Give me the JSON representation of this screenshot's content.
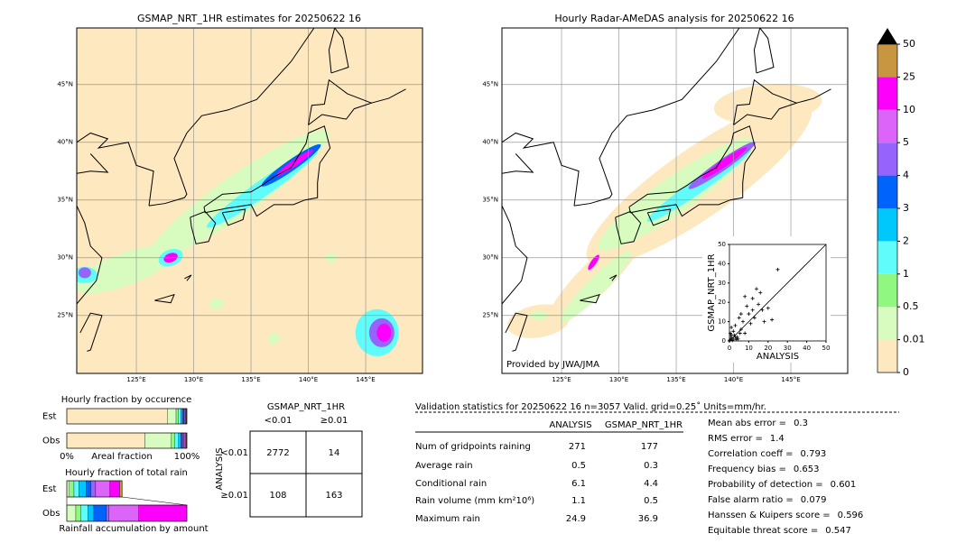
{
  "maps": [
    {
      "title": "GSMAP_NRT_1HR estimates for 20250622 16",
      "lat_labels": [
        "45°N",
        "40°N",
        "35°N",
        "30°N",
        "25°N"
      ],
      "lon_labels": [
        "125°E",
        "130°E",
        "135°E",
        "140°E",
        "145°E"
      ]
    },
    {
      "title": "Hourly Radar-AMeDAS analysis for 20250622 16",
      "lat_labels": [
        "45°N",
        "40°N",
        "35°N",
        "30°N",
        "25°N"
      ],
      "lon_labels": [
        "125°E",
        "130°E",
        "135°E",
        "140°E",
        "145°E"
      ],
      "credit": "Provided by JWA/JMA"
    }
  ],
  "colorbar": {
    "ticks": [
      0,
      0.01,
      0.5,
      1,
      2,
      3,
      4,
      5,
      10,
      25,
      50
    ],
    "colors": [
      "#fde8c0",
      "#d8fcc0",
      "#90f880",
      "#60fcfc",
      "#00c8fc",
      "#0064fc",
      "#9664fc",
      "#dc64f8",
      "#fc00fc",
      "#c89640"
    ],
    "extend_color": "#000000"
  },
  "chart_data": [
    {
      "type": "scatter",
      "xlabel": "ANALYSIS",
      "ylabel": "GSMAP_NRT_1HR",
      "color": "#000000",
      "x": [
        25,
        14,
        12,
        8,
        15,
        17,
        20,
        10,
        5,
        3,
        2,
        1,
        6,
        4,
        8,
        11,
        13,
        7,
        18,
        22,
        1,
        2,
        3,
        0.5,
        1,
        9,
        16,
        12,
        6,
        0.3,
        0.8,
        1.5,
        2.5,
        4.5,
        5.5,
        3.5
      ],
      "y": [
        37,
        27,
        22,
        23,
        19,
        16,
        17,
        14,
        12,
        8,
        5,
        3,
        6,
        2,
        4,
        9,
        12,
        10,
        10,
        11,
        1,
        1,
        2,
        4,
        7,
        18,
        25,
        16,
        14,
        0.5,
        2,
        0.3,
        3,
        1,
        4,
        0.8
      ],
      "xlim": [
        0,
        50
      ],
      "ylim": [
        0,
        50
      ],
      "xticks": [
        0,
        10,
        20,
        30,
        40,
        50
      ],
      "yticks": [
        0,
        10,
        20,
        30,
        40,
        50
      ]
    },
    {
      "type": "stacked_barh",
      "title": "Hourly fraction by occurence",
      "xlabel": "Areal fraction",
      "categories": [
        "Est",
        "Obs"
      ],
      "xlim": [
        0,
        100
      ],
      "xticks": [
        {
          "value": 0,
          "label": "0%"
        },
        {
          "value": 100,
          "label": "100%"
        }
      ],
      "series": [
        {
          "color": "#fde8c0",
          "values": [
            84,
            65
          ]
        },
        {
          "color": "#d8fcc0",
          "values": [
            7,
            22
          ]
        },
        {
          "color": "#90f880",
          "values": [
            2,
            3
          ]
        },
        {
          "color": "#60fcfc",
          "values": [
            2,
            3
          ]
        },
        {
          "color": "#00c8fc",
          "values": [
            1.5,
            2
          ]
        },
        {
          "color": "#0064fc",
          "values": [
            1,
            1.5
          ]
        },
        {
          "color": "#9664fc",
          "values": [
            1,
            1
          ]
        },
        {
          "color": "#dc64f8",
          "values": [
            0.5,
            1
          ]
        },
        {
          "color": "#fc00fc",
          "values": [
            0.5,
            1
          ]
        },
        {
          "color": "#c89640",
          "values": [
            0.5,
            0.5
          ]
        }
      ]
    },
    {
      "type": "stacked_barh",
      "title": "Hourly fraction of total rain",
      "xlabel": "Rainfall accumulation by amount",
      "categories": [
        "Est",
        "Obs"
      ],
      "xlim": [
        0,
        100
      ],
      "series": [
        {
          "color": "#d8fcc0",
          "values": [
            2,
            7.5
          ]
        },
        {
          "color": "#90f880",
          "values": [
            4,
            4
          ]
        },
        {
          "color": "#60fcfc",
          "values": [
            4,
            6
          ]
        },
        {
          "color": "#00c8fc",
          "values": [
            6,
            5
          ]
        },
        {
          "color": "#0064fc",
          "values": [
            4,
            10.5
          ]
        },
        {
          "color": "#9664fc",
          "values": [
            4,
            2
          ]
        },
        {
          "color": "#dc64f8",
          "values": [
            12,
            25
          ]
        },
        {
          "color": "#fc00fc",
          "values": [
            8,
            40
          ]
        },
        {
          "color": "#c89640",
          "values": [
            2,
            0
          ]
        }
      ]
    }
  ],
  "contingency": {
    "title": "GSMAP_NRT_1HR",
    "columns": [
      "<0.01",
      "≥0.01"
    ],
    "row_title": "ANALYSIS",
    "rows": [
      "<0.01",
      "≥0.01"
    ],
    "cells": [
      [
        2772,
        14
      ],
      [
        108,
        163
      ]
    ]
  },
  "validation": {
    "title": "Validation statistics for 20250622 16  n=3057 Valid. grid=0.25˚ Units=mm/hr.",
    "columns": [
      "ANALYSIS",
      "GSMAP_NRT_1HR"
    ],
    "rows": [
      {
        "label": "Num of gridpoints raining",
        "values": [
          271,
          177
        ]
      },
      {
        "label": "Average rain",
        "values": [
          0.5,
          0.3
        ]
      },
      {
        "label": "Conditional rain",
        "values": [
          6.1,
          4.4
        ]
      },
      {
        "label": "Rain volume (mm km²10⁶)",
        "values": [
          1.1,
          0.5
        ]
      },
      {
        "label": "Maximum rain",
        "values": [
          24.9,
          36.9
        ]
      }
    ],
    "scores": [
      {
        "label": "Mean abs error =",
        "value": 0.3
      },
      {
        "label": "RMS error =",
        "value": 1.4
      },
      {
        "label": "Correlation coeff =",
        "value": 0.793
      },
      {
        "label": "Frequency bias =",
        "value": 0.653
      },
      {
        "label": "Probability of detection =",
        "value": 0.601
      },
      {
        "label": "False alarm ratio =",
        "value": 0.079
      },
      {
        "label": "Hanssen & Kuipers score =",
        "value": 0.596
      },
      {
        "label": "Equitable threat score =",
        "value": 0.547
      }
    ]
  }
}
